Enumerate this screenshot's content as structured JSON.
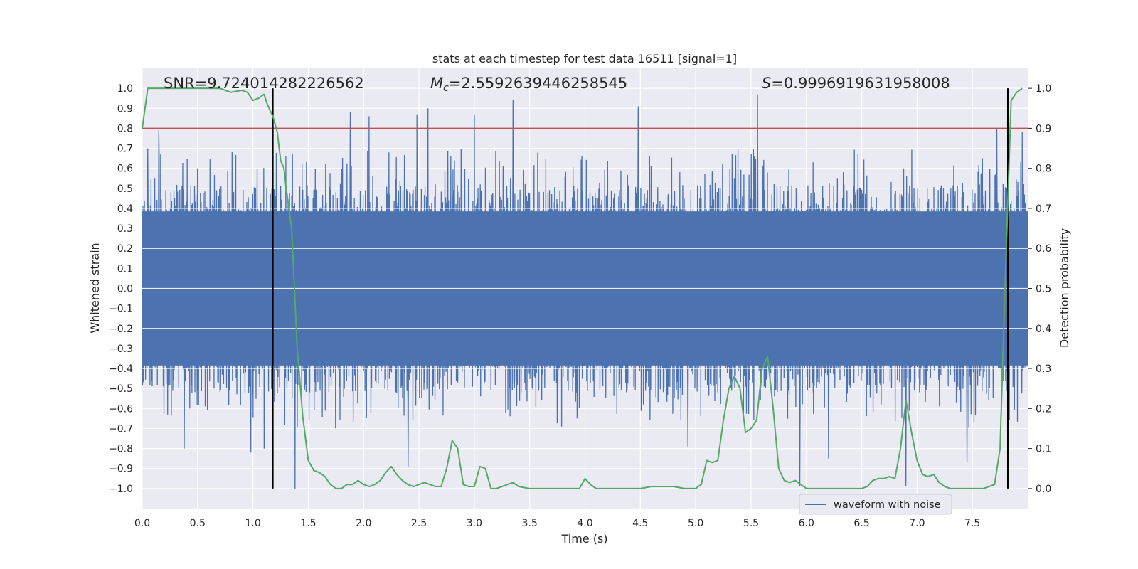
{
  "chart_data": {
    "type": "line",
    "title": "stats at each timestep for test data 16511 [signal=1]",
    "xlabel": "Time (s)",
    "ylabel": "Whitened strain",
    "y2label": "Detection probability",
    "xlim": [
      0.0,
      8.0
    ],
    "ylim": [
      -1.1,
      1.1
    ],
    "y2lim": [
      -0.05,
      1.05
    ],
    "xticks": [
      0.0,
      0.5,
      1.0,
      1.5,
      2.0,
      2.5,
      3.0,
      3.5,
      4.0,
      4.5,
      5.0,
      5.5,
      6.0,
      6.5,
      7.0,
      7.5
    ],
    "yticks": [
      -1.0,
      -0.9,
      -0.8,
      -0.7,
      -0.6,
      -0.5,
      -0.4,
      -0.3,
      -0.2,
      -0.1,
      0.0,
      0.1,
      0.2,
      0.3,
      0.4,
      0.5,
      0.6,
      0.7,
      0.8,
      0.9,
      1.0
    ],
    "y2ticks": [
      0.0,
      0.1,
      0.2,
      0.3,
      0.4,
      0.5,
      0.6,
      0.7,
      0.8,
      0.9,
      1.0
    ],
    "grid": true,
    "legend": {
      "placement": "lower-right",
      "entries": [
        "waveform with noise"
      ]
    },
    "annotations": {
      "snr": "SNR=9.724014282226562",
      "mc_symbol": "M",
      "mc_sub": "c",
      "mc_value": "=2.5592639446258545",
      "s_symbol": "S",
      "s_value": "=0.9996919631958008"
    },
    "threshold": {
      "y2": 0.9,
      "color": "#c44e52"
    },
    "vlines": {
      "x": [
        1.18,
        7.82
      ],
      "y2range": [
        0.0,
        1.0
      ],
      "color": "#000000"
    },
    "waveform": {
      "name": "waveform with noise",
      "color": "#4c72b0",
      "envelope_typical": 0.4,
      "peaks": [
        {
          "x": 0.05,
          "y": 0.7
        },
        {
          "x": 0.15,
          "y": 0.79
        },
        {
          "x": 0.38,
          "y": -0.8
        },
        {
          "x": 0.5,
          "y": 0.6
        },
        {
          "x": 0.98,
          "y": -0.82
        },
        {
          "x": 1.1,
          "y": -0.8
        },
        {
          "x": 1.38,
          "y": -1.0
        },
        {
          "x": 1.88,
          "y": 0.88
        },
        {
          "x": 2.05,
          "y": 0.86
        },
        {
          "x": 2.4,
          "y": -0.89
        },
        {
          "x": 2.48,
          "y": 0.87
        },
        {
          "x": 2.58,
          "y": 0.9
        },
        {
          "x": 3.0,
          "y": 0.87
        },
        {
          "x": 3.35,
          "y": 0.94
        },
        {
          "x": 4.48,
          "y": 0.91
        },
        {
          "x": 4.93,
          "y": -0.79
        },
        {
          "x": 5.56,
          "y": 0.97
        },
        {
          "x": 5.94,
          "y": -0.99
        },
        {
          "x": 6.2,
          "y": -0.85
        },
        {
          "x": 6.9,
          "y": -0.99
        },
        {
          "x": 7.45,
          "y": -0.87
        },
        {
          "x": 7.72,
          "y": 0.8
        },
        {
          "x": 7.95,
          "y": 0.78
        }
      ]
    },
    "probability": {
      "color": "#55a868",
      "x": [
        0.0,
        0.05,
        0.1,
        0.2,
        0.3,
        0.4,
        0.5,
        0.6,
        0.7,
        0.75,
        0.8,
        0.9,
        0.95,
        1.0,
        1.05,
        1.1,
        1.13,
        1.18,
        1.22,
        1.25,
        1.28,
        1.3,
        1.35,
        1.4,
        1.45,
        1.5,
        1.55,
        1.6,
        1.65,
        1.7,
        1.75,
        1.8,
        1.85,
        1.9,
        1.95,
        2.0,
        2.05,
        2.1,
        2.15,
        2.2,
        2.25,
        2.3,
        2.35,
        2.4,
        2.45,
        2.5,
        2.55,
        2.6,
        2.65,
        2.7,
        2.75,
        2.8,
        2.85,
        2.9,
        2.95,
        3.0,
        3.05,
        3.1,
        3.15,
        3.2,
        3.25,
        3.3,
        3.35,
        3.4,
        3.5,
        3.6,
        3.7,
        3.8,
        3.9,
        3.95,
        4.0,
        4.05,
        4.1,
        4.15,
        4.2,
        4.3,
        4.4,
        4.5,
        4.6,
        4.7,
        4.8,
        4.9,
        4.95,
        5.0,
        5.05,
        5.1,
        5.15,
        5.2,
        5.25,
        5.3,
        5.35,
        5.4,
        5.45,
        5.5,
        5.55,
        5.6,
        5.65,
        5.7,
        5.75,
        5.8,
        5.85,
        5.9,
        5.95,
        6.0,
        6.1,
        6.2,
        6.3,
        6.4,
        6.5,
        6.55,
        6.6,
        6.65,
        6.7,
        6.75,
        6.8,
        6.85,
        6.9,
        6.95,
        7.0,
        7.05,
        7.1,
        7.15,
        7.2,
        7.25,
        7.3,
        7.4,
        7.5,
        7.6,
        7.65,
        7.7,
        7.75,
        7.8,
        7.85,
        7.9,
        7.95
      ],
      "y": [
        0.9,
        1.0,
        1.0,
        1.0,
        1.0,
        1.0,
        1.0,
        1.0,
        1.0,
        0.995,
        0.99,
        0.995,
        0.99,
        0.97,
        0.975,
        0.985,
        0.96,
        0.93,
        0.89,
        0.82,
        0.8,
        0.75,
        0.65,
        0.35,
        0.18,
        0.07,
        0.045,
        0.04,
        0.03,
        0.01,
        0.0,
        0.0,
        0.01,
        0.01,
        0.02,
        0.01,
        0.005,
        0.01,
        0.02,
        0.04,
        0.055,
        0.035,
        0.02,
        0.01,
        0.005,
        0.01,
        0.015,
        0.01,
        0.005,
        0.005,
        0.05,
        0.12,
        0.1,
        0.01,
        0.005,
        0.005,
        0.055,
        0.05,
        0.0,
        0.0,
        0.005,
        0.01,
        0.015,
        0.005,
        0.0,
        0.0,
        0.0,
        0.0,
        0.0,
        0.0,
        0.025,
        0.01,
        0.0,
        0.0,
        0.0,
        0.0,
        0.0,
        0.0,
        0.005,
        0.005,
        0.005,
        0.0,
        0.0,
        0.0,
        0.01,
        0.07,
        0.065,
        0.07,
        0.17,
        0.25,
        0.28,
        0.25,
        0.14,
        0.15,
        0.17,
        0.3,
        0.33,
        0.2,
        0.05,
        0.02,
        0.015,
        0.02,
        0.01,
        0.0,
        0.0,
        0.0,
        0.0,
        0.0,
        0.0,
        0.005,
        0.02,
        0.025,
        0.025,
        0.03,
        0.025,
        0.1,
        0.22,
        0.14,
        0.07,
        0.035,
        0.03,
        0.035,
        0.015,
        0.005,
        0.0,
        0.0,
        0.0,
        0.0,
        0.005,
        0.01,
        0.1,
        0.55,
        0.97,
        0.99,
        1.0
      ]
    }
  }
}
